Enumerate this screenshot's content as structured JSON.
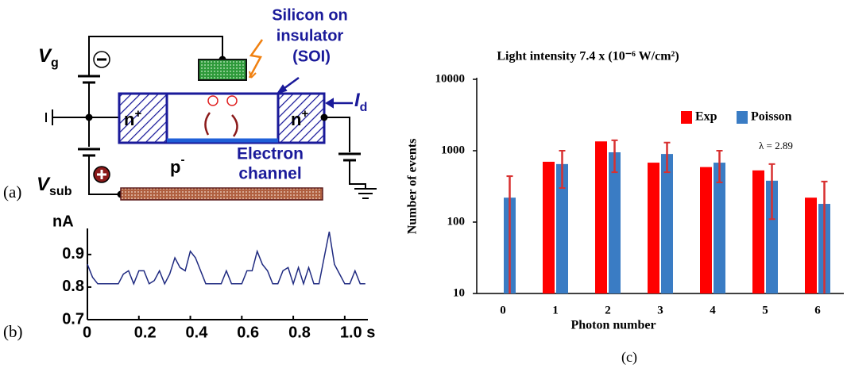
{
  "diagram": {
    "panel_label": "(a)",
    "gate_voltage": {
      "symbol": "V",
      "subscript": "g"
    },
    "substrate_voltage": {
      "symbol": "V",
      "subscript": "sub"
    },
    "drain_current": {
      "symbol": "I",
      "subscript": "d"
    },
    "soi_label": [
      "Silicon on",
      "insulator",
      "(SOI)"
    ],
    "source": {
      "text": "n",
      "sup": "+"
    },
    "drain": {
      "text": "n",
      "sup": "+"
    },
    "body": {
      "text": "p",
      "sup": "-"
    },
    "channel_label": [
      "Electron",
      "channel"
    ]
  },
  "chart_data": [
    {
      "type": "line",
      "panel_label": "(b)",
      "y_label": "nA",
      "color": "#1f2a80",
      "x": [
        0,
        0.02,
        0.04,
        0.06,
        0.08,
        0.1,
        0.12,
        0.14,
        0.16,
        0.18,
        0.2,
        0.22,
        0.24,
        0.26,
        0.28,
        0.3,
        0.32,
        0.34,
        0.36,
        0.38,
        0.4,
        0.42,
        0.44,
        0.46,
        0.48,
        0.5,
        0.52,
        0.54,
        0.56,
        0.58,
        0.6,
        0.62,
        0.64,
        0.66,
        0.68,
        0.7,
        0.72,
        0.74,
        0.76,
        0.78,
        0.8,
        0.82,
        0.84,
        0.86,
        0.88,
        0.9,
        0.92,
        0.94,
        0.96,
        0.98,
        1.0,
        1.02,
        1.04,
        1.06,
        1.08
      ],
      "values": [
        0.87,
        0.83,
        0.81,
        0.81,
        0.81,
        0.81,
        0.81,
        0.84,
        0.85,
        0.81,
        0.85,
        0.85,
        0.81,
        0.82,
        0.85,
        0.81,
        0.84,
        0.89,
        0.86,
        0.85,
        0.91,
        0.89,
        0.85,
        0.81,
        0.81,
        0.81,
        0.81,
        0.85,
        0.81,
        0.81,
        0.81,
        0.85,
        0.85,
        0.91,
        0.87,
        0.85,
        0.81,
        0.81,
        0.85,
        0.86,
        0.81,
        0.86,
        0.81,
        0.86,
        0.81,
        0.81,
        0.89,
        0.97,
        0.87,
        0.84,
        0.81,
        0.81,
        0.85,
        0.81,
        0.81
      ],
      "xlim": [
        0,
        1.09
      ],
      "xticks": [
        0,
        0.2,
        0.4,
        0.6,
        0.8,
        {
          "value": 1.0,
          "label": "1.0 s"
        }
      ],
      "ylim": [
        0.7,
        0.98
      ],
      "yticks": [
        0.7,
        0.8,
        0.9
      ]
    },
    {
      "type": "bar",
      "panel_label": "(c)",
      "title": "Light intensity 7.4 x (10⁻⁶ W/cm²)",
      "x_label": "Photon number",
      "y_label": "Number of events",
      "annotation": "λ = 2.89",
      "categories": [
        "0",
        "1",
        "2",
        "3",
        "4",
        "5",
        "6"
      ],
      "series": [
        {
          "name": "Exp",
          "color": "#ff0000",
          "values": [
            null,
            700,
            1350,
            680,
            590,
            530,
            220
          ]
        },
        {
          "name": "Poisson",
          "color": "#3a7cc4",
          "values": [
            220,
            650,
            950,
            900,
            680,
            380,
            180
          ],
          "errors": [
            220,
            350,
            450,
            400,
            320,
            270,
            190
          ],
          "error_color": "#d83030"
        }
      ],
      "log_y": true,
      "ylim": [
        10,
        10000
      ],
      "yticks": [
        10,
        100,
        1000,
        10000
      ],
      "legend": "upper right"
    }
  ]
}
